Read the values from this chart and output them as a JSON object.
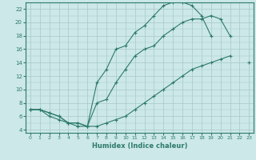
{
  "xlabel": "Humidex (Indice chaleur)",
  "bg_color": "#cce8e8",
  "grid_color": "#aacccc",
  "line_color": "#2d7a6a",
  "xlim": [
    -0.5,
    23.5
  ],
  "ylim": [
    3.5,
    23.0
  ],
  "xticks": [
    0,
    1,
    2,
    3,
    4,
    5,
    6,
    7,
    8,
    9,
    10,
    11,
    12,
    13,
    14,
    15,
    16,
    17,
    18,
    19,
    20,
    21,
    22,
    23
  ],
  "yticks": [
    4,
    6,
    8,
    10,
    12,
    14,
    16,
    18,
    20,
    22
  ],
  "line1_x": [
    0,
    1,
    2,
    3,
    4,
    5,
    6,
    7,
    8,
    9,
    10,
    11,
    12,
    13,
    14,
    15,
    16,
    17,
    18,
    19,
    20,
    21,
    22,
    23
  ],
  "line1_y": [
    7,
    7,
    6.5,
    6,
    5,
    5,
    4.5,
    11,
    13,
    16,
    16.5,
    18.5,
    19.5,
    21,
    22.5,
    23,
    23,
    22.5,
    21,
    18,
    null,
    null,
    null,
    null
  ],
  "line2_x": [
    0,
    1,
    2,
    3,
    4,
    5,
    6,
    7,
    8,
    9,
    10,
    11,
    12,
    13,
    14,
    15,
    16,
    17,
    18,
    19,
    20,
    21,
    22,
    23
  ],
  "line2_y": [
    7,
    7,
    6.5,
    6,
    5,
    5,
    4.5,
    8,
    8.5,
    11,
    13,
    15,
    16,
    16.5,
    18,
    19,
    20,
    20.5,
    20.5,
    21,
    20.5,
    18,
    null,
    null
  ],
  "line3_x": [
    0,
    1,
    2,
    3,
    4,
    5,
    6,
    7,
    8,
    9,
    10,
    11,
    12,
    13,
    14,
    15,
    16,
    17,
    18,
    19,
    20,
    21,
    22,
    23
  ],
  "line3_y": [
    7,
    7,
    6,
    5.5,
    5,
    4.5,
    4.5,
    4.5,
    5,
    5.5,
    6,
    7,
    8,
    9,
    10,
    11,
    12,
    13,
    13.5,
    14,
    14.5,
    15,
    null,
    14
  ]
}
